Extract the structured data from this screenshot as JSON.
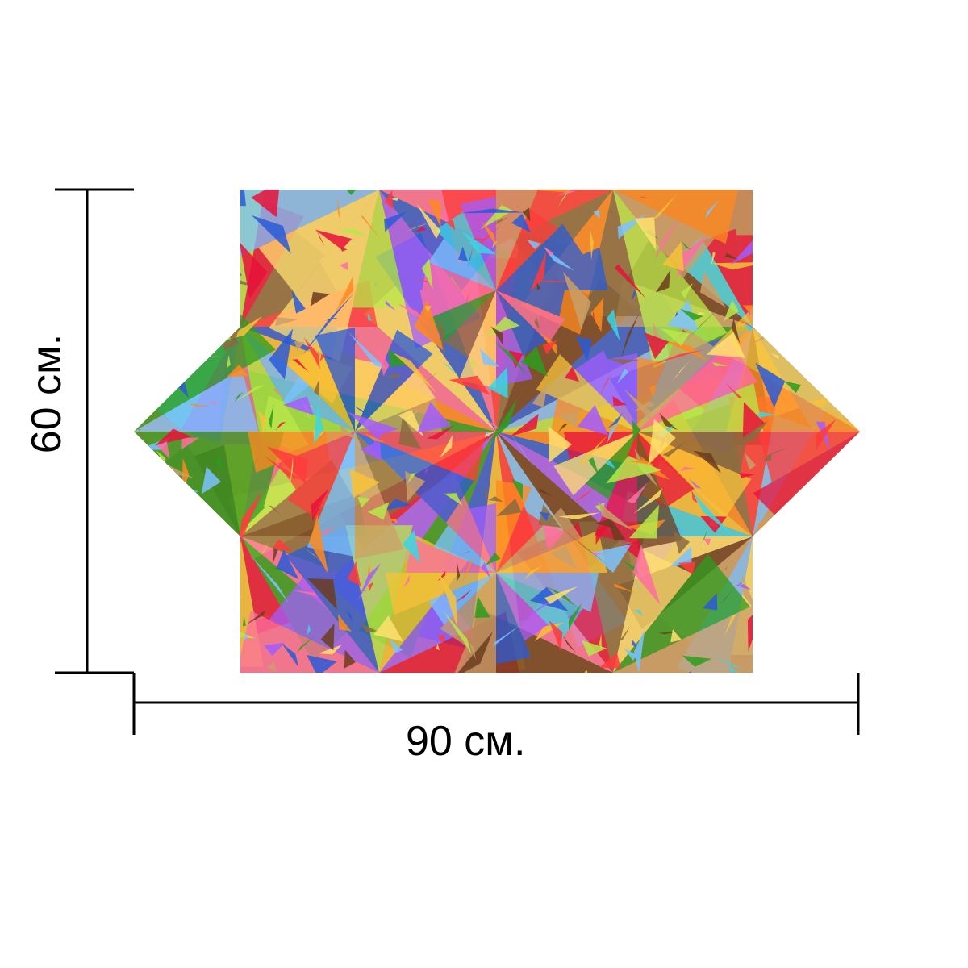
{
  "dimensions": {
    "height_label": "60 см.",
    "width_label": "90 см."
  },
  "artwork": {
    "palette": [
      "#e8123a",
      "#f7c23a",
      "#2d9c1d",
      "#2a5bd7",
      "#ff6fa0",
      "#8a6b3f",
      "#7cc3ff",
      "#a35cff",
      "#ff8a1f",
      "#b9e84a",
      "#c9a06a",
      "#ff3b3b",
      "#3ad6e8",
      "#6b3d1f",
      "#ffe070"
    ]
  }
}
